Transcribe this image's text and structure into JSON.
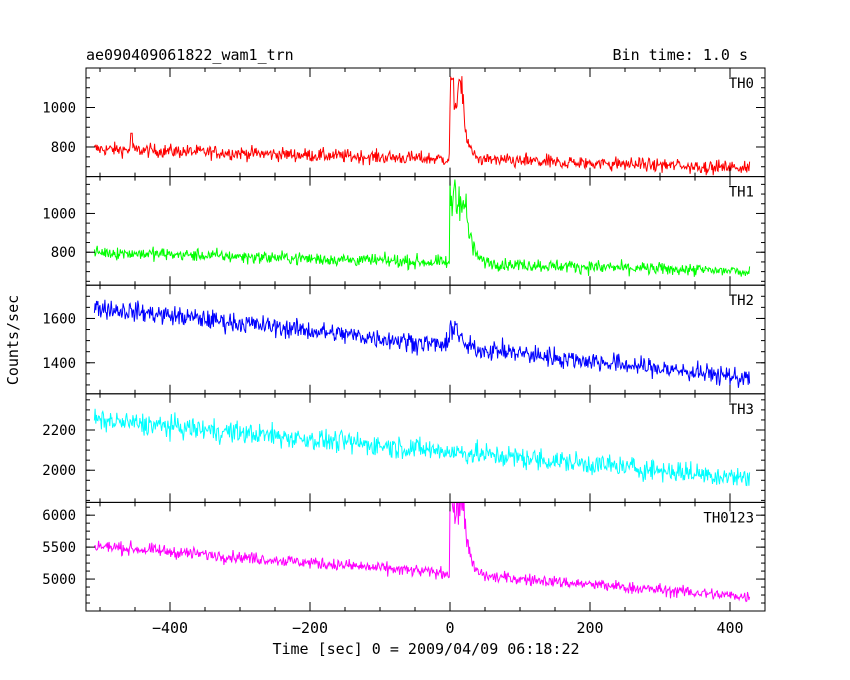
{
  "header": {
    "title": "ae090409061822_wam1_trn",
    "bin_time": "Bin time: 1.0 s"
  },
  "chart_data": {
    "type": "line",
    "title": "ae090409061822_wam1_trn",
    "xlabel": "Time [sec] 0 = 2009/04/09 06:18:22",
    "ylabel": "Counts/sec",
    "xlim": [
      -520,
      450
    ],
    "x_ticks": [
      -400,
      -200,
      0,
      200,
      400
    ],
    "x_tick_labels": [
      "−400",
      "−200",
      "0",
      "200",
      "400"
    ],
    "x_data_range": [
      -508,
      428
    ],
    "panels": [
      {
        "name": "TH0",
        "color": "#ff0000",
        "ylim": [
          650,
          1200
        ],
        "yticks": [
          800,
          1000
        ],
        "ytick_labels": [
          "800",
          "1000"
        ],
        "baseline_start": 790,
        "baseline_end": 695,
        "noise": 35,
        "peak": {
          "x": 0,
          "height": 440,
          "decay": 6,
          "width": 18
        },
        "spike": {
          "x": -455,
          "value": 870
        }
      },
      {
        "name": "TH1",
        "color": "#00ff00",
        "ylim": [
          630,
          1190
        ],
        "yticks": [
          800,
          1000
        ],
        "ytick_labels": [
          "800",
          "1000"
        ],
        "baseline_start": 800,
        "baseline_end": 700,
        "noise": 33,
        "peak": {
          "x": 0,
          "height": 430,
          "decay": 8,
          "width": 22
        }
      },
      {
        "name": "TH2",
        "color": "#0000ff",
        "ylim": [
          1260,
          1750
        ],
        "yticks": [
          1400,
          1600
        ],
        "ytick_labels": [
          "1400",
          "1600"
        ],
        "baseline_start": 1650,
        "baseline_end": 1330,
        "noise": 45,
        "peak": {
          "x": 0,
          "height": 120,
          "decay": 5,
          "width": 10
        }
      },
      {
        "name": "TH3",
        "color": "#00ffff",
        "ylim": [
          1840,
          2380
        ],
        "yticks": [
          2000,
          2200
        ],
        "ytick_labels": [
          "2000",
          "2200"
        ],
        "baseline_start": 2250,
        "baseline_end": 1960,
        "noise": 55,
        "peak": {
          "x": 0,
          "height": 0,
          "decay": 5,
          "width": 5
        }
      },
      {
        "name": "TH0123",
        "color": "#ff00ff",
        "ylim": [
          4500,
          6200
        ],
        "yticks": [
          5000,
          5500,
          6000
        ],
        "ytick_labels": [
          "5000",
          "5500",
          "6000"
        ],
        "baseline_start": 5520,
        "baseline_end": 4720,
        "noise": 95,
        "peak": {
          "x": 0,
          "height": 1300,
          "decay": 7,
          "width": 20
        }
      }
    ]
  }
}
